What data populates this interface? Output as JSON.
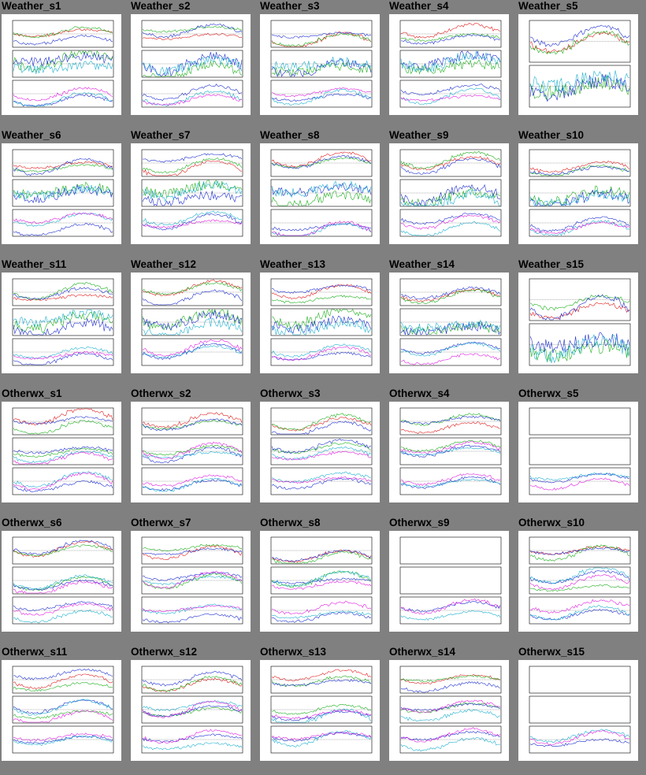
{
  "gallery": {
    "rows": [
      {
        "kind": "weather",
        "items": [
          {
            "label": "Weather_s1",
            "panels": 3
          },
          {
            "label": "Weather_s2",
            "panels": 3
          },
          {
            "label": "Weather_s3",
            "panels": 3
          },
          {
            "label": "Weather_s4",
            "panels": 3
          },
          {
            "label": "Weather_s5",
            "panels": 2
          }
        ]
      },
      {
        "kind": "weather",
        "items": [
          {
            "label": "Weather_s6",
            "panels": 3
          },
          {
            "label": "Weather_s7",
            "panels": 3
          },
          {
            "label": "Weather_s8",
            "panels": 3
          },
          {
            "label": "Weather_s9",
            "panels": 3
          },
          {
            "label": "Weather_s10",
            "panels": 3
          }
        ]
      },
      {
        "kind": "weather",
        "items": [
          {
            "label": "Weather_s11",
            "panels": 3
          },
          {
            "label": "Weather_s12",
            "panels": 3
          },
          {
            "label": "Weather_s13",
            "panels": 3
          },
          {
            "label": "Weather_s14",
            "panels": 3
          },
          {
            "label": "Weather_s15",
            "panels": 2
          }
        ]
      },
      {
        "kind": "otherwx",
        "items": [
          {
            "label": "Otherwx_s1",
            "panels": 3
          },
          {
            "label": "Otherwx_s2",
            "panels": 3
          },
          {
            "label": "Otherwx_s3",
            "panels": 3
          },
          {
            "label": "Otherwx_s4",
            "panels": 3
          },
          {
            "label": "Otherwx_s5",
            "panels": 3,
            "mostly_empty": true
          }
        ]
      },
      {
        "kind": "otherwx",
        "items": [
          {
            "label": "Otherwx_s6",
            "panels": 3
          },
          {
            "label": "Otherwx_s7",
            "panels": 3
          },
          {
            "label": "Otherwx_s8",
            "panels": 3
          },
          {
            "label": "Otherwx_s9",
            "panels": 3,
            "mostly_empty": true
          },
          {
            "label": "Otherwx_s10",
            "panels": 3
          }
        ]
      },
      {
        "kind": "otherwx",
        "items": [
          {
            "label": "Otherwx_s11",
            "panels": 3
          },
          {
            "label": "Otherwx_s12",
            "panels": 3
          },
          {
            "label": "Otherwx_s13",
            "panels": 3
          },
          {
            "label": "Otherwx_s14",
            "panels": 3
          },
          {
            "label": "Otherwx_s15",
            "panels": 3,
            "mostly_empty": true
          }
        ]
      }
    ]
  },
  "colors": {
    "page_bg": "#808080",
    "thumb_bg": "#ffffff",
    "series_red": "#e02020",
    "series_green": "#20b020",
    "series_blue": "#2030d0",
    "series_cyan": "#20b0d0",
    "series_magenta": "#e020e0"
  }
}
